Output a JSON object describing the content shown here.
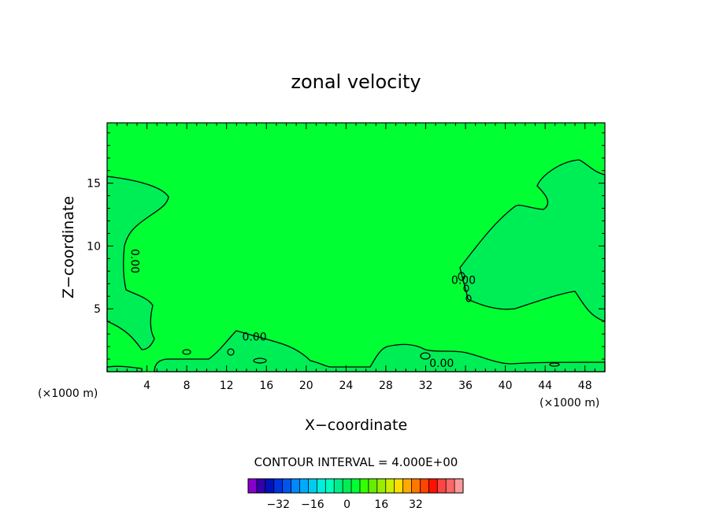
{
  "chart_data": {
    "type": "heatmap",
    "title": "zonal velocity",
    "xlabel": "X−coordinate",
    "ylabel": "Z−coordinate",
    "x_unit": "(×1000 m)",
    "y_unit": "(×1000 m)",
    "xlim": [
      0,
      50
    ],
    "ylim": [
      0,
      19.8
    ],
    "x_ticks": [
      4,
      8,
      12,
      16,
      20,
      24,
      28,
      32,
      36,
      40,
      44,
      48
    ],
    "y_ticks": [
      5,
      10,
      15
    ],
    "contour_interval_text": "CONTOUR INTERVAL = 4.000E+00",
    "background_level_color": "#00ff33",
    "contour_level_color": "#00ee55",
    "contour_labels": [
      {
        "text": "0.00",
        "x": 2,
        "z": 8.8,
        "rotate": true
      },
      {
        "text": "0.00",
        "x": 14.8,
        "z": 2.8,
        "rotate": false
      },
      {
        "text": "0.00",
        "x": 33.6,
        "z": 0.7,
        "rotate": false
      },
      {
        "text": "0.00",
        "x": 35.8,
        "z": 7.3,
        "rotate": false
      }
    ],
    "colorbar": {
      "colors": [
        "#8800cc",
        "#3300aa",
        "#0011bb",
        "#0033dd",
        "#0055ee",
        "#0088ff",
        "#00aaff",
        "#00ccee",
        "#00eedd",
        "#00ffbb",
        "#00ee88",
        "#00ee55",
        "#00ff33",
        "#33ff00",
        "#66ee00",
        "#99ee00",
        "#ccee00",
        "#ffdd00",
        "#ffaa00",
        "#ff7700",
        "#ff4400",
        "#ff1100",
        "#ff4444",
        "#ff6666",
        "#ff9999"
      ],
      "tick_labels": [
        "−32",
        "−16",
        "0",
        "16",
        "32"
      ],
      "tick_positions": [
        3.5,
        7.5,
        11.5,
        15.5,
        19.5
      ]
    }
  }
}
